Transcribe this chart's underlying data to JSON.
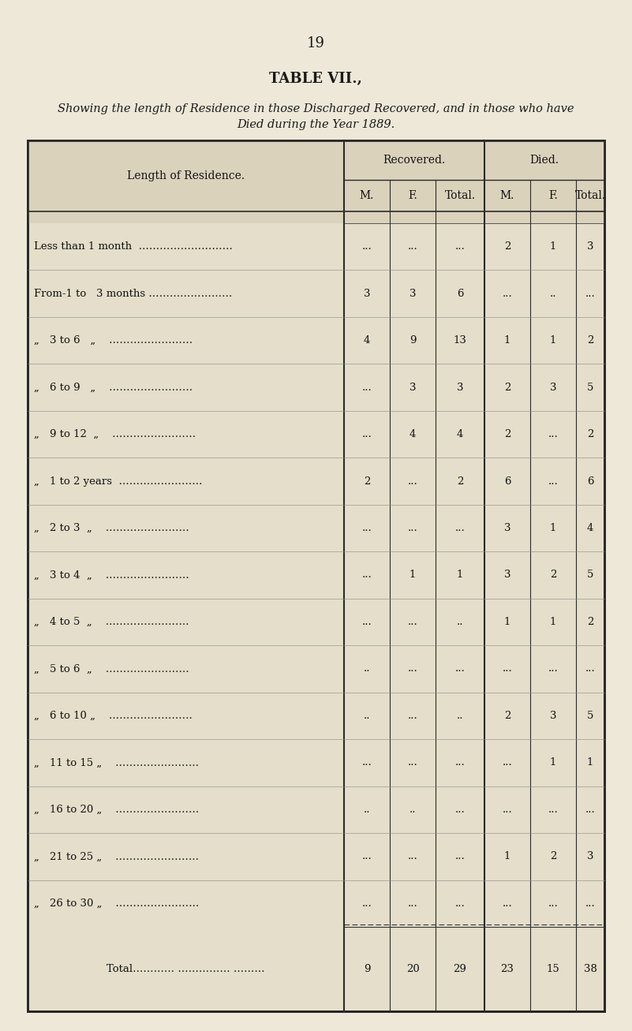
{
  "page_number": "19",
  "title": "TABLE VII.,",
  "subtitle_line1": "Showing the length of Residence in those Discharged Recovered, and in those who have",
  "subtitle_line2": "Died during the Year 1889.",
  "bg_color": "#ede8d8",
  "table_bg_light": "#e4deca",
  "col_header_1": "Recovered.",
  "col_header_2": "Died.",
  "sub_headers": [
    "M.",
    "F.",
    "Total.",
    "M.",
    "F.",
    "Total."
  ],
  "row_label_header": "Length of Residence.",
  "rows": [
    {
      "label": "Less than 1 month  ………………………",
      "rec_m": "...",
      "rec_f": "...",
      "rec_t": "...",
      "die_m": "2",
      "die_f": "1",
      "die_t": "3"
    },
    {
      "label": "From-1 to   3 months ……………………",
      "rec_m": "3",
      "rec_f": "3",
      "rec_t": "6",
      "die_m": "...",
      "die_f": "..",
      "die_t": "..."
    },
    {
      "label": "„ 3 to 6   „    ……………………",
      "rec_m": "4",
      "rec_f": "9",
      "rec_t": "13",
      "die_m": "1",
      "die_f": "1",
      "die_t": "2"
    },
    {
      "label": "„ 6 to 9   „    ……………………",
      "rec_m": "...",
      "rec_f": "3",
      "rec_t": "3",
      "die_m": "2",
      "die_f": "3",
      "die_t": "5"
    },
    {
      "label": "„ 9 to 12  „    ……………………",
      "rec_m": "...",
      "rec_f": "4",
      "rec_t": "4",
      "die_m": "2",
      "die_f": "...",
      "die_t": "2"
    },
    {
      "label": "„ 1 to 2 years  ……………………",
      "rec_m": "2",
      "rec_f": "...",
      "rec_t": "2",
      "die_m": "6",
      "die_f": "...",
      "die_t": "6"
    },
    {
      "label": "„ 2 to 3  „    ……………………",
      "rec_m": "...",
      "rec_f": "...",
      "rec_t": "...",
      "die_m": "3",
      "die_f": "1",
      "die_t": "4"
    },
    {
      "label": "„ 3 to 4  „    ……………………",
      "rec_m": "...",
      "rec_f": "1",
      "rec_t": "1",
      "die_m": "3",
      "die_f": "2",
      "die_t": "5"
    },
    {
      "label": "„ 4 to 5  „    ……………………",
      "rec_m": "...",
      "rec_f": "...",
      "rec_t": "..",
      "die_m": "1",
      "die_f": "1",
      "die_t": "2"
    },
    {
      "label": "„ 5 to 6  „    ……………………",
      "rec_m": "..",
      "rec_f": "...",
      "rec_t": "...",
      "die_m": "...",
      "die_f": "...",
      "die_t": "..."
    },
    {
      "label": "„ 6 to 10 „    ……………………",
      "rec_m": "..",
      "rec_f": "...",
      "rec_t": "..",
      "die_m": "2",
      "die_f": "3",
      "die_t": "5"
    },
    {
      "label": "„ 11 to 15 „    ……………………",
      "rec_m": "...",
      "rec_f": "...",
      "rec_t": "...",
      "die_m": "...",
      "die_f": "1",
      "die_t": "1"
    },
    {
      "label": "„ 16 to 20 „    ……………………",
      "rec_m": "..",
      "rec_f": "..",
      "rec_t": "...",
      "die_m": "...",
      "die_f": "...",
      "die_t": "..."
    },
    {
      "label": "„ 21 to 25 „    ……………………",
      "rec_m": "...",
      "rec_f": "...",
      "rec_t": "...",
      "die_m": "1",
      "die_f": "2",
      "die_t": "3"
    },
    {
      "label": "„ 26 to 30 „    ……………………",
      "rec_m": "...",
      "rec_f": "...",
      "rec_t": "...",
      "die_m": "...",
      "die_f": "...",
      "die_t": "..."
    }
  ],
  "total_label": "Total………… …………… ………",
  "total_vals": [
    "9",
    "20",
    "29",
    "23",
    "15",
    "38"
  ]
}
